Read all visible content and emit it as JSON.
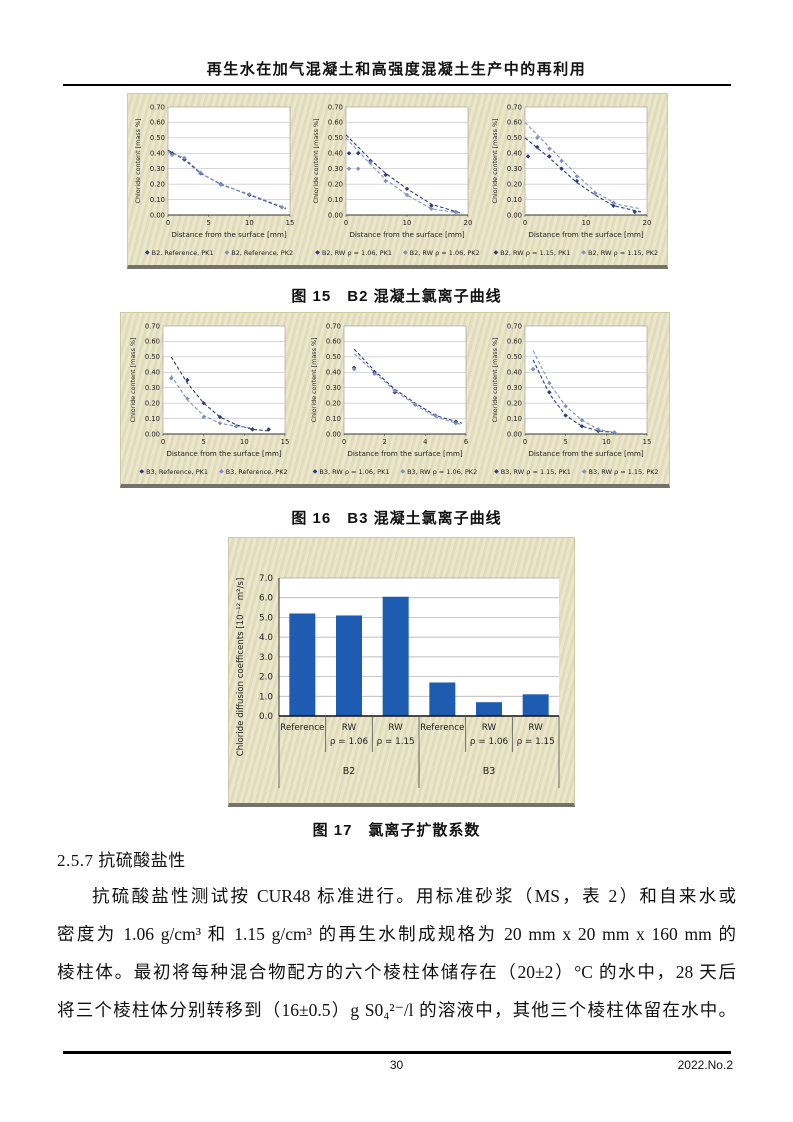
{
  "page": {
    "header_title": "再生水在加气混凝土和高强度混凝土生产中的再利用",
    "footer": {
      "page_number": "30",
      "issue": "2022.No.2"
    }
  },
  "figures": {
    "fig15_caption": "图 15　B2 混凝土氯离子曲线",
    "fig16_caption": "图 16　B3 混凝土氯离子曲线",
    "fig17_caption": "图 17　氯离子扩散系数"
  },
  "section": {
    "heading": "2.5.7 抗硫酸盐性",
    "lines": [
      "抗硫酸盐性测试按 CUR48 标准进行。用标准砂浆（MS，表 2）和自来水或",
      "密度为 1.06 g/cm³ 和 1.15 g/cm³ 的再生水制成规格为 20 mm x 20 mm x 160 mm 的",
      "棱柱体。最初将每种混合物配方的六个棱柱体储存在（20±2）°C 的水中，28 天后",
      "将三个棱柱体分别转移到（16±0.5）g S0₄²⁻/l 的溶液中，其他三个棱柱体留在水中。"
    ]
  },
  "colors": {
    "pk1_dark_blue": "#2c3a84",
    "pk2_light_blue": "#7b90c4",
    "bar_blue": "#1d5cb0",
    "panel_cream": "#e6e1c2"
  },
  "chart_data": [
    {
      "type": "scatter",
      "figure": "fig15-left",
      "xlabel": "Distance from the surface [mm]",
      "ylabel": "Chloride content [mass %]",
      "xlim": [
        0,
        15
      ],
      "xticks": [
        0,
        5,
        10,
        15
      ],
      "ylim": [
        0,
        0.7
      ],
      "ytick_step": 0.1,
      "series": [
        {
          "name": "B2, Reference, PK1",
          "color": "#2c3a84",
          "points": [
            [
              0.5,
              0.4
            ],
            [
              2,
              0.36
            ],
            [
              4,
              0.27
            ],
            [
              6.5,
              0.2
            ],
            [
              10,
              0.13
            ],
            [
              14,
              0.05
            ]
          ],
          "line": [
            [
              0,
              0.42
            ],
            [
              2,
              0.36
            ],
            [
              4,
              0.27
            ],
            [
              6.5,
              0.2
            ],
            [
              10,
              0.13
            ],
            [
              14.5,
              0.04
            ]
          ]
        },
        {
          "name": "B2, Reference, PK2",
          "color": "#7b90c4",
          "points": [
            [
              0.5,
              0.39
            ],
            [
              2,
              0.37
            ],
            [
              4,
              0.275
            ],
            [
              6.5,
              0.195
            ],
            [
              10,
              0.135
            ],
            [
              14,
              0.05
            ]
          ],
          "line": [
            [
              0,
              0.41
            ],
            [
              2,
              0.37
            ],
            [
              4,
              0.275
            ],
            [
              6.5,
              0.195
            ],
            [
              10,
              0.135
            ],
            [
              14.5,
              0.045
            ]
          ]
        }
      ]
    },
    {
      "type": "scatter",
      "figure": "fig15-middle",
      "xlabel": "Distance from the surface [mm]",
      "ylabel": "Chloride content [mass %]",
      "xlim": [
        0,
        20
      ],
      "xticks": [
        0,
        10,
        20
      ],
      "ylim": [
        0,
        0.7
      ],
      "ytick_step": 0.1,
      "series": [
        {
          "name": "B2, RW ρ = 1.06, PK1",
          "color": "#2c3a84",
          "points": [
            [
              0.5,
              0.4
            ],
            [
              2,
              0.4
            ],
            [
              4,
              0.35
            ],
            [
              6.5,
              0.26
            ],
            [
              10,
              0.17
            ],
            [
              14,
              0.06
            ],
            [
              18,
              0.02
            ]
          ],
          "line": [
            [
              0,
              0.52
            ],
            [
              4,
              0.36
            ],
            [
              6.5,
              0.27
            ],
            [
              10,
              0.17
            ],
            [
              14,
              0.07
            ],
            [
              19,
              0.01
            ]
          ]
        },
        {
          "name": "B2, RW ρ = 1.06, PK2",
          "color": "#7b90c4",
          "points": [
            [
              0.5,
              0.3
            ],
            [
              2,
              0.3
            ],
            [
              4,
              0.34
            ],
            [
              6.5,
              0.22
            ],
            [
              10,
              0.13
            ],
            [
              14,
              0.04
            ],
            [
              18,
              0.02
            ]
          ],
          "line": [
            [
              0,
              0.5
            ],
            [
              4,
              0.33
            ],
            [
              6.5,
              0.23
            ],
            [
              10,
              0.13
            ],
            [
              14,
              0.04
            ],
            [
              19,
              0.01
            ]
          ]
        }
      ]
    },
    {
      "type": "scatter",
      "figure": "fig15-right",
      "xlabel": "Distance from the surface [mm]",
      "ylabel": "Chloride content [mass %]",
      "xlim": [
        0,
        20
      ],
      "xticks": [
        0,
        10,
        20
      ],
      "ylim": [
        0,
        0.7
      ],
      "ytick_step": 0.1,
      "series": [
        {
          "name": "B2, RW ρ = 1.15, PK1",
          "color": "#2c3a84",
          "points": [
            [
              0.5,
              0.38
            ],
            [
              2,
              0.44
            ],
            [
              4,
              0.38
            ],
            [
              6,
              0.3
            ],
            [
              8.5,
              0.22
            ],
            [
              11.5,
              0.14
            ],
            [
              14.5,
              0.06
            ],
            [
              18,
              0.02
            ]
          ],
          "line": [
            [
              0,
              0.5
            ],
            [
              4,
              0.37
            ],
            [
              8.5,
              0.21
            ],
            [
              11.5,
              0.13
            ],
            [
              14.5,
              0.06
            ],
            [
              19,
              0.02
            ]
          ]
        },
        {
          "name": "B2, RW  ρ = 1.15, PK2",
          "color": "#7b90c4",
          "points": [
            [
              2,
              0.5
            ],
            [
              4,
              0.43
            ],
            [
              6,
              0.35
            ],
            [
              8.5,
              0.25
            ],
            [
              11.5,
              0.14
            ],
            [
              14.5,
              0.08
            ]
          ],
          "line": [
            [
              0,
              0.6
            ],
            [
              4,
              0.44
            ],
            [
              8.5,
              0.26
            ],
            [
              11.5,
              0.15
            ],
            [
              15,
              0.07
            ],
            [
              19,
              0.04
            ]
          ]
        }
      ]
    },
    {
      "type": "scatter",
      "figure": "fig16-left",
      "xlabel": "Distance from the surface [mm]",
      "ylabel": "Chloride content [mass %]",
      "xlim": [
        0,
        15
      ],
      "xticks": [
        0,
        5,
        10,
        15
      ],
      "ylim": [
        0,
        0.7
      ],
      "ytick_step": 0.1,
      "series": [
        {
          "name": "B3, Reference, PK1",
          "color": "#2c3a84",
          "points": [
            [
              3,
              0.35
            ],
            [
              5,
              0.2
            ],
            [
              7,
              0.11
            ],
            [
              9,
              0.05
            ],
            [
              11,
              0.03
            ],
            [
              13,
              0.03
            ]
          ],
          "line": [
            [
              1,
              0.5
            ],
            [
              3,
              0.33
            ],
            [
              5,
              0.2
            ],
            [
              7,
              0.11
            ],
            [
              9,
              0.06
            ],
            [
              11,
              0.03
            ],
            [
              13,
              0.02
            ]
          ]
        },
        {
          "name": "B3, Reference, PK2",
          "color": "#7b90c4",
          "points": [
            [
              1,
              0.36
            ],
            [
              3,
              0.23
            ],
            [
              5,
              0.11
            ],
            [
              7,
              0.07
            ],
            [
              9,
              0.05
            ]
          ],
          "line": [
            [
              1,
              0.38
            ],
            [
              3,
              0.22
            ],
            [
              5,
              0.12
            ],
            [
              7,
              0.07
            ],
            [
              9,
              0.05
            ],
            [
              11,
              0.04
            ]
          ]
        }
      ]
    },
    {
      "type": "scatter",
      "figure": "fig16-middle",
      "xlabel": "Distance from the surface [mm]",
      "ylabel": "Chloride content [mass %]",
      "xlim": [
        0,
        6
      ],
      "xticks": [
        0,
        2,
        4,
        6
      ],
      "ylim": [
        0,
        0.7
      ],
      "ytick_step": 0.1,
      "series": [
        {
          "name": "B3, RW ρ = 1.06, PK1",
          "color": "#2c3a84",
          "points": [
            [
              0.5,
              0.43
            ],
            [
              1.5,
              0.4
            ],
            [
              2.5,
              0.27
            ],
            [
              3.5,
              0.19
            ],
            [
              4.5,
              0.12
            ],
            [
              5.5,
              0.08
            ]
          ],
          "line": [
            [
              0.5,
              0.55
            ],
            [
              1.5,
              0.41
            ],
            [
              2.5,
              0.29
            ],
            [
              3.5,
              0.2
            ],
            [
              4.5,
              0.12
            ],
            [
              5.8,
              0.07
            ]
          ]
        },
        {
          "name": "B3, RW ρ = 1.06, PK2",
          "color": "#7b90c4",
          "points": [
            [
              0.5,
              0.42
            ],
            [
              1.5,
              0.39
            ],
            [
              2.5,
              0.28
            ],
            [
              3.5,
              0.19
            ],
            [
              4.5,
              0.12
            ],
            [
              5.5,
              0.07
            ]
          ],
          "line": [
            [
              0.5,
              0.52
            ],
            [
              1.5,
              0.4
            ],
            [
              2.5,
              0.28
            ],
            [
              3.5,
              0.19
            ],
            [
              4.5,
              0.11
            ],
            [
              5.8,
              0.06
            ]
          ]
        }
      ]
    },
    {
      "type": "scatter",
      "figure": "fig16-right",
      "xlabel": "Distance from the surface [mm]",
      "ylabel": "Chloride content [mass %]",
      "xlim": [
        0,
        15
      ],
      "xticks": [
        0,
        5,
        10,
        15
      ],
      "ylim": [
        0,
        0.7
      ],
      "ytick_step": 0.1,
      "series": [
        {
          "name": "B3, RW ρ = 1.15, PK1",
          "color": "#2c3a84",
          "points": [
            [
              1,
              0.42
            ],
            [
              3,
              0.27
            ],
            [
              5,
              0.12
            ],
            [
              7,
              0.05
            ],
            [
              9,
              0.02
            ],
            [
              11,
              0.01
            ]
          ],
          "line": [
            [
              1,
              0.48
            ],
            [
              3,
              0.26
            ],
            [
              5,
              0.12
            ],
            [
              7,
              0.05
            ],
            [
              9,
              0.02
            ],
            [
              11,
              0.01
            ]
          ]
        },
        {
          "name": "B3, RW ρ = 1.15, PK2",
          "color": "#7b90c4",
          "points": [
            [
              1,
              0.42
            ],
            [
              3,
              0.33
            ],
            [
              5,
              0.18
            ],
            [
              7,
              0.09
            ],
            [
              9,
              0.03
            ],
            [
              11,
              0.01
            ]
          ],
          "line": [
            [
              1,
              0.54
            ],
            [
              3,
              0.33
            ],
            [
              5,
              0.18
            ],
            [
              7,
              0.09
            ],
            [
              9,
              0.03
            ],
            [
              11,
              0.01
            ]
          ]
        }
      ]
    },
    {
      "type": "bar",
      "figure": "fig17",
      "ylabel": "Chloride diffusion coefficents [10⁻¹² m²/s]",
      "ylim": [
        0,
        7
      ],
      "ytick_step": 1,
      "categories": [
        [
          "Reference",
          ""
        ],
        [
          "RW",
          "ρ = 1.06"
        ],
        [
          "RW",
          "ρ = 1.15"
        ],
        [
          "Reference",
          ""
        ],
        [
          "RW",
          "ρ = 1.06"
        ],
        [
          "RW",
          "ρ = 1.15"
        ]
      ],
      "groups": [
        {
          "label": "B2",
          "span": 3
        },
        {
          "label": "B3",
          "span": 3
        }
      ],
      "values": [
        5.2,
        5.1,
        6.05,
        1.7,
        0.7,
        1.1
      ],
      "bar_color": "#1d5cb0"
    }
  ]
}
